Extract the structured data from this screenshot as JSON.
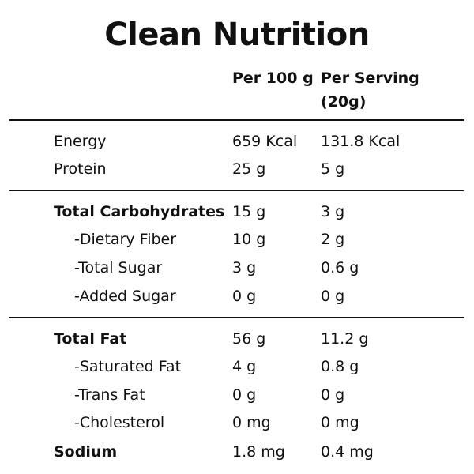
{
  "title": "Clean Nutrition",
  "header": {
    "per100": "Per 100 g",
    "perServing_line1": "Per Serving",
    "perServing_line2": "(20g)"
  },
  "rows": [
    {
      "label": "Energy",
      "per100": "659 Kcal",
      "perServing": "131.8 Kcal"
    },
    {
      "label": "Protein",
      "per100": "25 g",
      "perServing": "5 g"
    },
    {
      "label": "Total Carbohydrates",
      "per100": "15 g",
      "perServing": "3 g"
    },
    {
      "label": "-Dietary Fiber",
      "per100": "10 g",
      "perServing": "2 g"
    },
    {
      "label": "-Total Sugar",
      "per100": "3 g",
      "perServing": "0.6 g"
    },
    {
      "label": "-Added Sugar",
      "per100": "0 g",
      "perServing": "0 g"
    },
    {
      "label": "Total Fat",
      "per100": "56 g",
      "perServing": "11.2 g"
    },
    {
      "label": "-Saturated Fat",
      "per100": "4 g",
      "perServing": "0.8 g"
    },
    {
      "label": "-Trans Fat",
      "per100": "0 g",
      "perServing": "0 g"
    },
    {
      "label": "-Cholesterol",
      "per100": "0 mg",
      "perServing": "0 mg"
    },
    {
      "label": "Sodium",
      "per100": "1.8 mg",
      "perServing": "0.4 mg"
    }
  ]
}
